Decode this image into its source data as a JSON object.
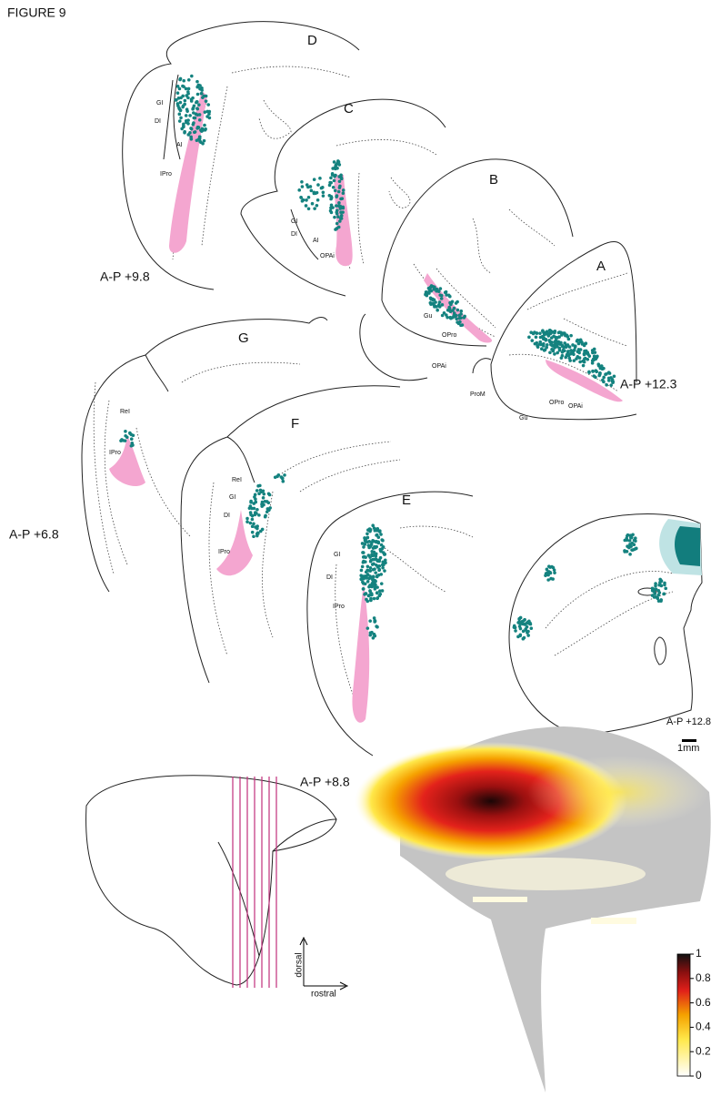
{
  "figure": {
    "title": "FIGURE 9",
    "sections": [
      {
        "letter": "D",
        "ap": "A-P +9.8",
        "labels": [
          "GI",
          "DI",
          "AI",
          "IPro"
        ]
      },
      {
        "letter": "C",
        "labels": [
          "GI",
          "DI",
          "AI",
          "OPAi"
        ]
      },
      {
        "letter": "B",
        "labels": [
          "Gu",
          "OPro",
          "OPAi"
        ]
      },
      {
        "letter": "A",
        "ap": "A-P +12.3",
        "labels": [
          "ProM",
          "Gu",
          "OPro",
          "OPAi"
        ]
      },
      {
        "letter": "G",
        "ap": "A-P +6.8",
        "labels": [
          "ReI",
          "IPro"
        ]
      },
      {
        "letter": "F",
        "labels": [
          "ReI",
          "GI",
          "DI",
          "IPro"
        ]
      },
      {
        "letter": "E",
        "ap": "A-P +8.8",
        "labels": [
          "GI",
          "DI",
          "IPro"
        ]
      }
    ],
    "flatmap": {
      "ap": "A-P +12.8",
      "scale": "1mm"
    },
    "orientation": {
      "vertical": "dorsal",
      "horizontal": "rostral"
    },
    "colorbar": {
      "lim": [
        0,
        1
      ],
      "ticks": [
        0,
        0.2,
        0.4,
        0.6,
        0.8,
        1
      ]
    }
  }
}
